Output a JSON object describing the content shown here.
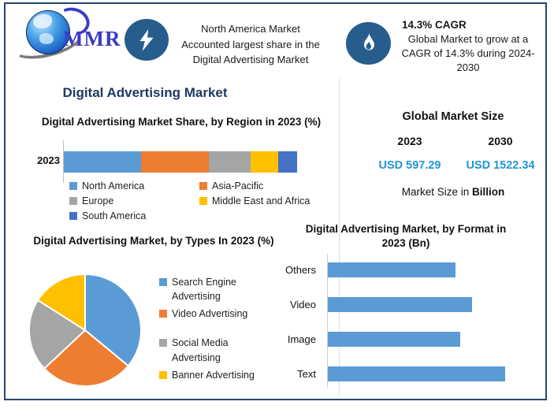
{
  "header": {
    "logo_text": "MMR",
    "highlight1": {
      "icon": "lightning-icon",
      "lines": [
        "North America Market",
        "Accounted largest share in the",
        "Digital Advertising Market"
      ]
    },
    "highlight2": {
      "icon": "flame-icon",
      "title": "14.3% CAGR",
      "body": "Global Market to grow at a CAGR of 14.3% during 2024-2030"
    }
  },
  "main_title": "Digital Advertising Market",
  "market_size": {
    "title": "Global Market Size",
    "year_2023": "2023",
    "year_2030": "2030",
    "value_2023": "USD 597.29",
    "value_2030": "USD 1522.34",
    "footnote_prefix": "Market Size in ",
    "footnote_bold": "Billion"
  },
  "colors": {
    "frame_border": "#24466B",
    "badge_blue": "#275D8D",
    "title_navy": "#1F3864",
    "usd_blue": "#1F96D4",
    "logo_blue": "#3B3BC4"
  },
  "chart_data": [
    {
      "type": "bar",
      "subtype": "stacked-horizontal",
      "title": "Digital Advertising Market Share, by Region in 2023 (%)",
      "categories": [
        "2023"
      ],
      "series": [
        {
          "name": "North America",
          "values": [
            33
          ]
        },
        {
          "name": "Asia-Pacific",
          "values": [
            29
          ]
        },
        {
          "name": "Europe",
          "values": [
            18
          ]
        },
        {
          "name": "Middle East and Africa",
          "values": [
            12
          ]
        },
        {
          "name": "South America",
          "values": [
            8
          ]
        }
      ],
      "colors": [
        "#5B9BD5",
        "#ED7D31",
        "#A5A5A5",
        "#FFC000",
        "#4472C4"
      ],
      "xlim": [
        0,
        100
      ],
      "legend_position": "bottom"
    },
    {
      "type": "pie",
      "title": "Digital Advertising Market, by Types In 2023 (%)",
      "labels": [
        "Search Engine Advertising",
        "Video Advertising",
        "Social Media Advertising",
        "Banner Advertising"
      ],
      "values": [
        36,
        27,
        21,
        16
      ],
      "colors": [
        "#5B9BD5",
        "#ED7D31",
        "#A5A5A5",
        "#FFC000"
      ],
      "start_angle": "top",
      "direction": "clockwise",
      "legend_position": "right"
    },
    {
      "type": "bar",
      "subtype": "horizontal",
      "title": "Digital Advertising Market, by Format in 2023 (Bn)",
      "categories": [
        "Others",
        "Video",
        "Image",
        "Text"
      ],
      "values": [
        131,
        148,
        136,
        182
      ],
      "xlim": [
        0,
        200
      ],
      "color": "#5B9BD5",
      "grid": false
    }
  ]
}
